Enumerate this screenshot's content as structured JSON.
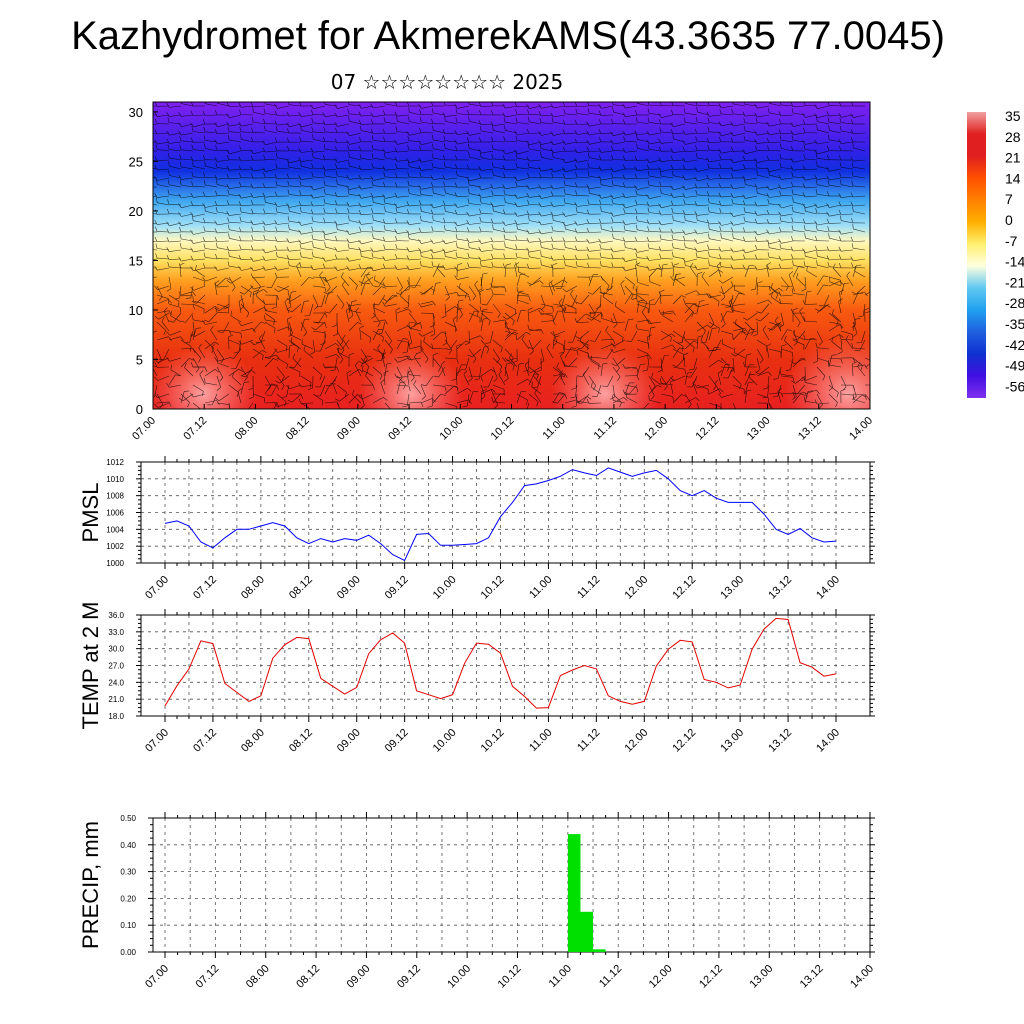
{
  "header": {
    "title": "Kazhydromet for AkmerekAMS(43.3635 77.0045)",
    "subtitle": "07 ☆☆☆☆☆☆☆☆ 2025"
  },
  "time_ticks": [
    "07.00",
    "07.12",
    "08.00",
    "08.12",
    "09.00",
    "09.12",
    "10.00",
    "10.12",
    "11.00",
    "11.12",
    "12.00",
    "12.12",
    "13.00",
    "13.12",
    "14.00"
  ],
  "chart_data": [
    {
      "type": "heatmap",
      "title": "",
      "xlabel": "",
      "ylabel": "",
      "x": [
        "07.00",
        "07.12",
        "08.00",
        "08.12",
        "09.00",
        "09.12",
        "10.00",
        "10.12",
        "11.00",
        "11.12",
        "12.00",
        "12.12",
        "13.00",
        "13.12",
        "14.00"
      ],
      "yticks": [
        "0",
        "5",
        "10",
        "15",
        "20",
        "25",
        "30"
      ],
      "ylim": [
        0,
        31
      ],
      "colorbar_labels": [
        "35",
        "28",
        "21",
        "14",
        "7",
        "0",
        "-7",
        "-14",
        "-21",
        "-28",
        "-35",
        "-42",
        "-49",
        "-56"
      ],
      "colorbar_colors": [
        "#f0a0a0",
        "#e02020",
        "#e02020",
        "#ff5000",
        "#ff8000",
        "#ffb000",
        "#fff070",
        "#ffffe0",
        "#60c8f0",
        "#20a0f0",
        "#2060e0",
        "#1030d0",
        "#4010e0",
        "#8030f0"
      ],
      "colormap_by_level": [
        {
          "level": 0,
          "color": "#e82020"
        },
        {
          "level": 5,
          "color": "#e83010"
        },
        {
          "level": 10,
          "color": "#f85a10"
        },
        {
          "level": 13,
          "color": "#ffa020"
        },
        {
          "level": 15,
          "color": "#ffe060"
        },
        {
          "level": 17,
          "color": "#fff8c0"
        },
        {
          "level": 18.5,
          "color": "#a0e0f8"
        },
        {
          "level": 21,
          "color": "#40a8f0"
        },
        {
          "level": 24,
          "color": "#1030e0"
        },
        {
          "level": 26,
          "color": "#3020e8"
        },
        {
          "level": 31,
          "color": "#8020f0"
        }
      ],
      "overlay": "wind barbs"
    },
    {
      "type": "line",
      "ylabel": "PMSL",
      "ylim": [
        1000,
        1012
      ],
      "yticks": [
        "1000",
        "1002",
        "1004",
        "1006",
        "1008",
        "1010",
        "1012"
      ],
      "grid": true,
      "color": "#0000ff",
      "x_hours": [
        0,
        3,
        6,
        9,
        12,
        15,
        18,
        21,
        24,
        27,
        30,
        33,
        36,
        39,
        42,
        45,
        48,
        51,
        54,
        57,
        60,
        63,
        66,
        69,
        72,
        75,
        78,
        81,
        84,
        87,
        90,
        93,
        96,
        99,
        102,
        105,
        108,
        111,
        114,
        117,
        120,
        123,
        126,
        129,
        132,
        135,
        138,
        141,
        144,
        147,
        150,
        153,
        156,
        159,
        162,
        165,
        168
      ],
      "values": [
        1004.7,
        1005.0,
        1004.4,
        1002.5,
        1001.8,
        1003.0,
        1004.0,
        1004.0,
        1004.4,
        1004.8,
        1004.4,
        1003.0,
        1002.3,
        1002.9,
        1002.5,
        1002.9,
        1002.7,
        1003.3,
        1002.3,
        1001.0,
        1000.3,
        1003.4,
        1003.5,
        1002.1,
        1002.1,
        1002.2,
        1002.3,
        1003.0,
        1005.5,
        1007.2,
        1009.2,
        1009.4,
        1009.8,
        1010.3,
        1011.1,
        1010.7,
        1010.4,
        1011.3,
        1010.8,
        1010.3,
        1010.7,
        1011.0,
        1010.0,
        1008.6,
        1008.0,
        1008.6,
        1007.7,
        1007.2,
        1007.2,
        1007.2,
        1005.8,
        1004.0,
        1003.4,
        1004.1,
        1003.0,
        1002.5,
        1002.6
      ]
    },
    {
      "type": "line",
      "ylabel": "TEMP at 2 M",
      "ylim": [
        18.0,
        36.0
      ],
      "yticks": [
        "18.0",
        "21.0",
        "24.0",
        "27.0",
        "30.0",
        "33.0",
        "36.0"
      ],
      "grid": true,
      "color": "#e00000",
      "x_hours": [
        0,
        3,
        6,
        9,
        12,
        15,
        18,
        21,
        24,
        27,
        30,
        33,
        36,
        39,
        42,
        45,
        48,
        51,
        54,
        57,
        60,
        63,
        66,
        69,
        72,
        75,
        78,
        81,
        84,
        87,
        90,
        93,
        96,
        99,
        102,
        105,
        108,
        111,
        114,
        117,
        120,
        123,
        126,
        129,
        132,
        135,
        138,
        141,
        144,
        147,
        150,
        153,
        156,
        159,
        162,
        165,
        168
      ],
      "values": [
        19.8,
        23.4,
        26.4,
        31.4,
        30.9,
        23.8,
        22.2,
        20.6,
        21.6,
        28.3,
        30.7,
        32.0,
        31.8,
        24.7,
        23.3,
        21.9,
        23.1,
        29.1,
        31.6,
        32.8,
        31.0,
        22.5,
        21.8,
        21.1,
        21.8,
        27.4,
        31.0,
        30.8,
        29.2,
        23.3,
        21.5,
        19.4,
        19.5,
        25.2,
        26.2,
        27.0,
        26.4,
        21.6,
        20.6,
        20.1,
        20.6,
        26.9,
        29.9,
        31.5,
        31.2,
        24.5,
        24.0,
        23.0,
        23.5,
        29.9,
        33.5,
        35.4,
        35.2,
        27.5,
        26.7,
        25.1,
        25.5
      ]
    },
    {
      "type": "bar",
      "ylabel": "PRECIP, mm",
      "ylim": [
        0.0,
        0.5
      ],
      "yticks": [
        "0.00",
        "0.10",
        "0.20",
        "0.30",
        "0.40",
        "0.50"
      ],
      "grid": true,
      "color": "#00e000",
      "x_hours": [
        96,
        99,
        102
      ],
      "values": [
        0.44,
        0.15,
        0.01
      ]
    }
  ]
}
